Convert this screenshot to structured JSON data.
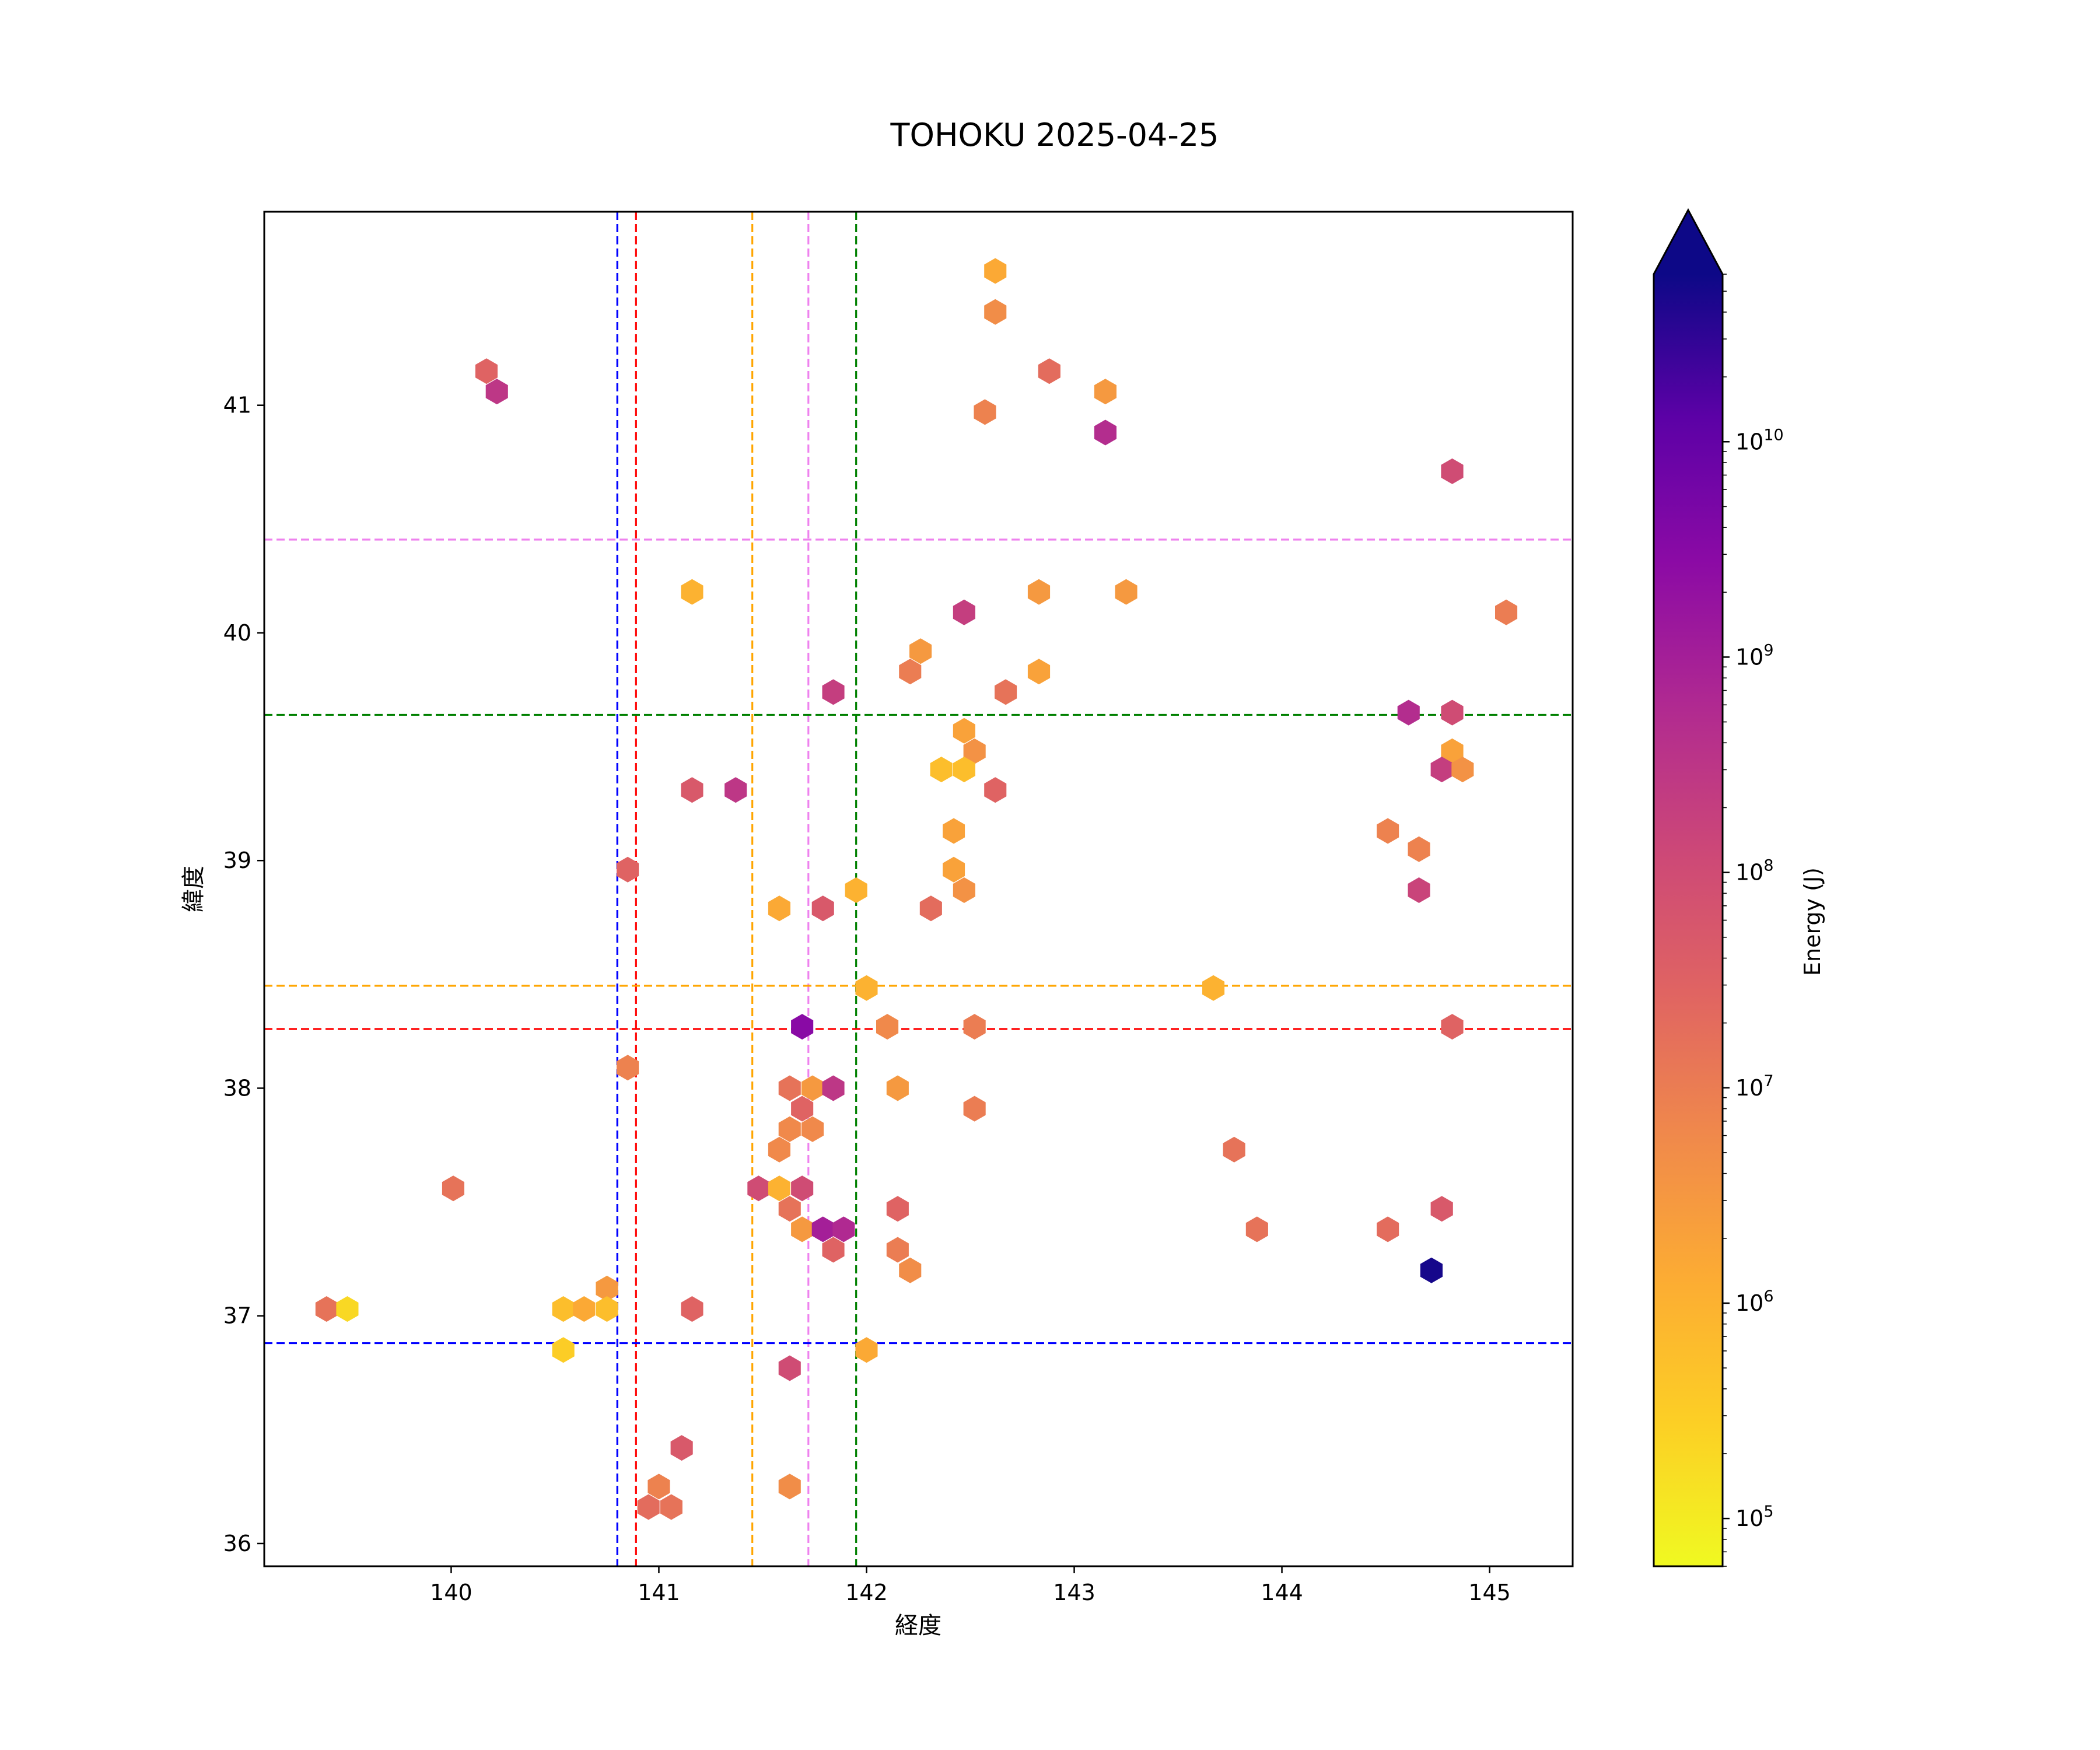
{
  "chart_data": {
    "type": "hexbin",
    "title": "TOHOKU 2025-04-25",
    "xlabel": "経度",
    "ylabel": "緯度",
    "xlim": [
      139.1,
      145.4
    ],
    "ylim": [
      35.9,
      41.85
    ],
    "xticks": [
      140,
      141,
      142,
      143,
      144,
      145
    ],
    "yticks": [
      36,
      37,
      38,
      39,
      40,
      41
    ],
    "grid": false,
    "colorbar": {
      "label": "Energy (J)",
      "scale": "log",
      "cmap": "plasma_r",
      "range": [
        60000,
        60000000000
      ],
      "extend": "max",
      "ticks": [
        {
          "value": 100000,
          "base": "10",
          "exp": "5"
        },
        {
          "value": 1000000,
          "base": "10",
          "exp": "6"
        },
        {
          "value": 10000000,
          "base": "10",
          "exp": "7"
        },
        {
          "value": 100000000,
          "base": "10",
          "exp": "8"
        },
        {
          "value": 1000000000,
          "base": "10",
          "exp": "9"
        },
        {
          "value": 10000000000,
          "base": "10",
          "exp": "10"
        }
      ]
    },
    "reference_lines": [
      {
        "orientation": "vertical",
        "value": 140.8,
        "color": "#0000ff"
      },
      {
        "orientation": "vertical",
        "value": 140.89,
        "color": "#ff0000"
      },
      {
        "orientation": "vertical",
        "value": 141.45,
        "color": "#ffa500"
      },
      {
        "orientation": "vertical",
        "value": 141.72,
        "color": "#ee82ee"
      },
      {
        "orientation": "vertical",
        "value": 141.95,
        "color": "#008000"
      },
      {
        "orientation": "horizontal",
        "value": 40.41,
        "color": "#ee82ee"
      },
      {
        "orientation": "horizontal",
        "value": 39.64,
        "color": "#008000"
      },
      {
        "orientation": "horizontal",
        "value": 38.45,
        "color": "#ffa500"
      },
      {
        "orientation": "horizontal",
        "value": 38.26,
        "color": "#ff0000"
      },
      {
        "orientation": "horizontal",
        "value": 36.88,
        "color": "#0000ff"
      }
    ],
    "points": [
      [
        142.62,
        41.59,
        1500000
      ],
      [
        142.62,
        41.41,
        5000000
      ],
      [
        140.17,
        41.15,
        30000000
      ],
      [
        140.22,
        41.06,
        300000000
      ],
      [
        142.57,
        40.97,
        8000000
      ],
      [
        142.88,
        41.15,
        20000000
      ],
      [
        143.15,
        41.06,
        3000000
      ],
      [
        143.15,
        40.88,
        500000000
      ],
      [
        144.82,
        40.71,
        100000000
      ],
      [
        141.16,
        40.18,
        1000000
      ],
      [
        142.83,
        40.18,
        3000000
      ],
      [
        143.25,
        40.18,
        3000000
      ],
      [
        142.47,
        40.09,
        200000000
      ],
      [
        145.08,
        40.09,
        10000000
      ],
      [
        142.26,
        39.92,
        3000000
      ],
      [
        142.21,
        39.83,
        10000000
      ],
      [
        142.83,
        39.83,
        2000000
      ],
      [
        141.84,
        39.74,
        200000000
      ],
      [
        142.67,
        39.74,
        15000000
      ],
      [
        144.61,
        39.65,
        500000000
      ],
      [
        144.82,
        39.65,
        100000000
      ],
      [
        142.47,
        39.57,
        2000000
      ],
      [
        142.52,
        39.48,
        4000000
      ],
      [
        144.82,
        39.48,
        2000000
      ],
      [
        142.36,
        39.4,
        600000
      ],
      [
        142.47,
        39.4,
        600000
      ],
      [
        144.77,
        39.4,
        200000000
      ],
      [
        144.87,
        39.4,
        4000000
      ],
      [
        141.16,
        39.31,
        50000000
      ],
      [
        141.37,
        39.31,
        300000000
      ],
      [
        142.62,
        39.31,
        30000000
      ],
      [
        142.42,
        39.13,
        2000000
      ],
      [
        144.51,
        39.13,
        8000000
      ],
      [
        144.66,
        39.05,
        8000000
      ],
      [
        140.85,
        38.96,
        30000000
      ],
      [
        142.42,
        38.96,
        2000000
      ],
      [
        141.95,
        38.87,
        1000000
      ],
      [
        142.47,
        38.87,
        4000000
      ],
      [
        144.66,
        38.87,
        150000000
      ],
      [
        141.58,
        38.79,
        1500000
      ],
      [
        141.79,
        38.79,
        50000000
      ],
      [
        142.31,
        38.79,
        20000000
      ],
      [
        142.0,
        38.44,
        1000000
      ],
      [
        143.67,
        38.44,
        1000000
      ],
      [
        141.69,
        38.27,
        3000000000
      ],
      [
        142.1,
        38.27,
        6000000
      ],
      [
        142.52,
        38.27,
        10000000
      ],
      [
        144.82,
        38.27,
        30000000
      ],
      [
        140.85,
        38.09,
        8000000
      ],
      [
        141.63,
        38.0,
        15000000
      ],
      [
        141.74,
        38.0,
        3000000
      ],
      [
        141.84,
        38.0,
        300000000
      ],
      [
        142.15,
        38.0,
        3000000
      ],
      [
        141.69,
        37.91,
        30000000
      ],
      [
        142.52,
        37.91,
        10000000
      ],
      [
        141.63,
        37.82,
        6000000
      ],
      [
        141.74,
        37.82,
        6000000
      ],
      [
        141.58,
        37.73,
        6000000
      ],
      [
        143.77,
        37.73,
        15000000
      ],
      [
        140.01,
        37.56,
        15000000
      ],
      [
        141.48,
        37.56,
        100000000
      ],
      [
        141.58,
        37.56,
        1000000
      ],
      [
        141.69,
        37.56,
        100000000
      ],
      [
        141.63,
        37.47,
        15000000
      ],
      [
        142.15,
        37.47,
        30000000
      ],
      [
        144.77,
        37.47,
        50000000
      ],
      [
        141.69,
        37.38,
        3000000
      ],
      [
        141.79,
        37.38,
        1000000000
      ],
      [
        141.89,
        37.38,
        600000000
      ],
      [
        143.88,
        37.38,
        15000000
      ],
      [
        144.51,
        37.38,
        20000000
      ],
      [
        141.84,
        37.29,
        30000000
      ],
      [
        142.15,
        37.29,
        10000000
      ],
      [
        142.21,
        37.2,
        5000000
      ],
      [
        144.72,
        37.2,
        50000000000
      ],
      [
        140.75,
        37.12,
        3000000
      ],
      [
        139.4,
        37.03,
        15000000
      ],
      [
        139.5,
        37.03,
        200000
      ],
      [
        140.54,
        37.03,
        600000
      ],
      [
        140.64,
        37.03,
        1500000
      ],
      [
        140.75,
        37.03,
        600000
      ],
      [
        141.16,
        37.03,
        30000000
      ],
      [
        140.54,
        36.85,
        300000
      ],
      [
        142.0,
        36.85,
        1500000
      ],
      [
        141.63,
        36.77,
        100000000
      ],
      [
        141.11,
        36.42,
        50000000
      ],
      [
        141.0,
        36.25,
        8000000
      ],
      [
        141.63,
        36.25,
        5000000
      ],
      [
        140.95,
        36.16,
        20000000
      ],
      [
        141.06,
        36.16,
        15000000
      ]
    ]
  }
}
